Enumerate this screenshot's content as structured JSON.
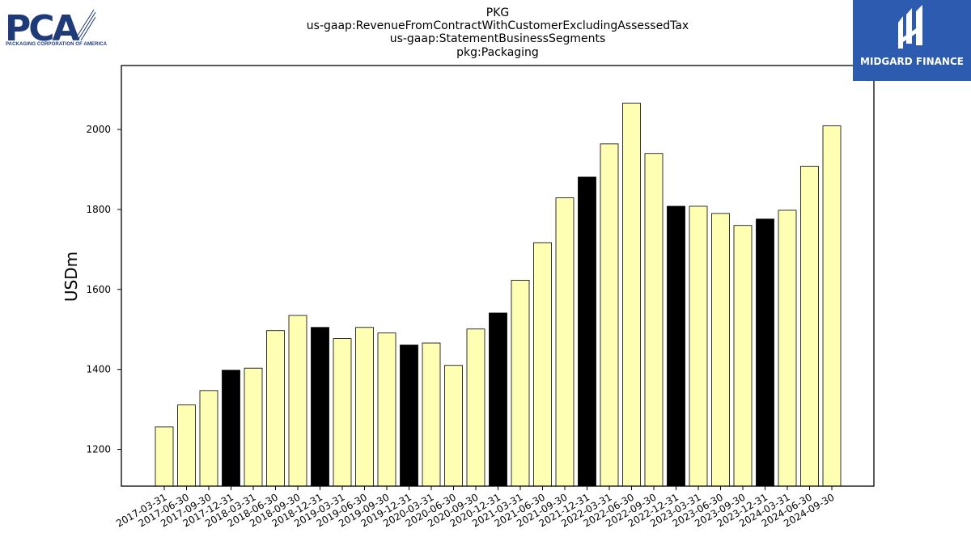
{
  "logos": {
    "left": {
      "name": "PCA",
      "tagline": "PACKAGING CORPORATION OF AMERICA",
      "color": "#1f3a78"
    },
    "right": {
      "name": "MIDGARD FINANCE",
      "background": "#2d5bb0",
      "color": "#ffffff"
    }
  },
  "chart_data": {
    "type": "bar",
    "title_lines": [
      "PKG",
      "us-gaap:RevenueFromContractWithCustomerExcludingAssessedTax",
      "us-gaap:StatementBusinessSegments",
      "pkg:Packaging"
    ],
    "xlabel": "",
    "ylabel": "USDm",
    "ylim": [
      1108,
      2160
    ],
    "yticks": [
      1200,
      1400,
      1600,
      1800,
      2000
    ],
    "grid": false,
    "colors": {
      "quarter": "#ffffb3",
      "year_end": "#000000",
      "edge": "#000000"
    },
    "categories": [
      "2017-03-31",
      "2017-06-30",
      "2017-09-30",
      "2017-12-31",
      "2018-03-31",
      "2018-06-30",
      "2018-09-30",
      "2018-12-31",
      "2019-03-31",
      "2019-06-30",
      "2019-09-30",
      "2019-12-31",
      "2020-03-31",
      "2020-06-30",
      "2020-09-30",
      "2020-12-31",
      "2021-03-31",
      "2021-06-30",
      "2021-09-30",
      "2021-12-31",
      "2022-03-31",
      "2022-06-30",
      "2022-09-30",
      "2022-12-31",
      "2023-03-31",
      "2023-06-30",
      "2023-09-30",
      "2023-12-31",
      "2024-03-31",
      "2024-06-30",
      "2024-09-30"
    ],
    "values": [
      1256,
      1311,
      1347,
      1398,
      1403,
      1497,
      1535,
      1505,
      1477,
      1505,
      1491,
      1461,
      1466,
      1410,
      1501,
      1541,
      1623,
      1717,
      1829,
      1881,
      1964,
      2066,
      1940,
      1808,
      1808,
      1790,
      1760,
      1776,
      1798,
      1908,
      2009
    ]
  }
}
